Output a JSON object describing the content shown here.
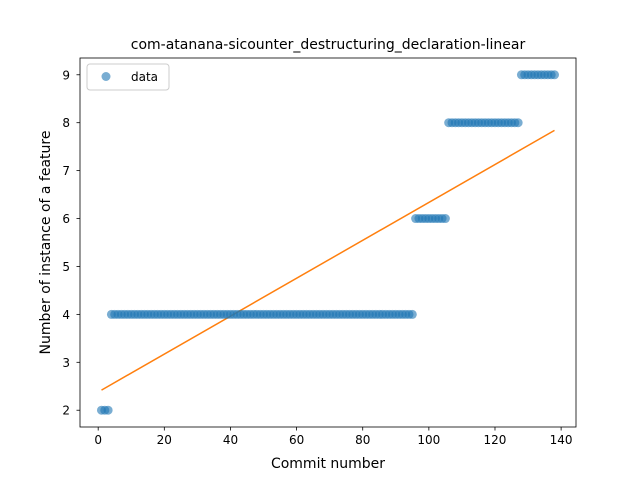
{
  "chart_data": {
    "type": "scatter",
    "title": "com-atanana-sicounter_destructuring_declaration-linear",
    "xlabel": "Commit number",
    "ylabel": "Number of instance of a feature",
    "xlim": [
      -5.5,
      144.5
    ],
    "ylim": [
      1.65,
      9.35
    ],
    "xticks": [
      0,
      20,
      40,
      60,
      80,
      100,
      120,
      140
    ],
    "yticks": [
      2,
      3,
      4,
      5,
      6,
      7,
      8,
      9
    ],
    "grid": false,
    "legend": {
      "position": "top-left",
      "entries": [
        "data"
      ]
    },
    "series": [
      {
        "name": "data",
        "kind": "scatter",
        "color": "#1f77b4",
        "runs": [
          {
            "x_start": 1,
            "x_end": 3,
            "y": 2
          },
          {
            "x_start": 4,
            "x_end": 95,
            "y": 4
          },
          {
            "x_start": 96,
            "x_end": 105,
            "y": 6
          },
          {
            "x_start": 106,
            "x_end": 127,
            "y": 8
          },
          {
            "x_start": 128,
            "x_end": 138,
            "y": 9
          }
        ]
      },
      {
        "kind": "line",
        "color": "#ff7f0e",
        "x": [
          1,
          138
        ],
        "y": [
          2.42,
          7.84
        ]
      }
    ]
  }
}
